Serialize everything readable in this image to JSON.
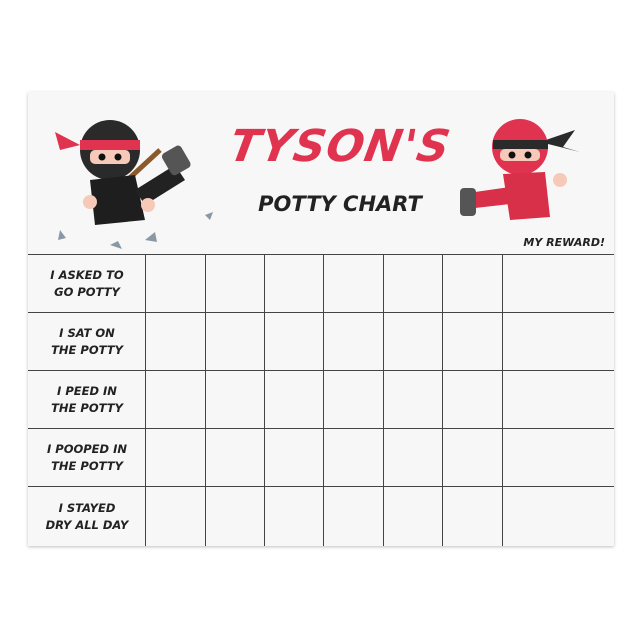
{
  "header": {
    "name_title": "TYSON'S",
    "subtitle": "POTTY CHART",
    "reward_label": "MY REWARD!"
  },
  "rows": [
    {
      "label": "I ASKED TO\nGO POTTY"
    },
    {
      "label": "I SAT ON\nTHE POTTY"
    },
    {
      "label": "I PEED IN\nTHE POTTY"
    },
    {
      "label": "I POOPED IN\nTHE POTTY"
    },
    {
      "label": "I STAYED\nDRY ALL DAY"
    }
  ],
  "columns": {
    "day_columns": 6,
    "reward_column": 1
  },
  "colors": {
    "accent_red": "#e0334f",
    "text_dark": "#222222",
    "grid_line": "#444444"
  },
  "illustrations": [
    "black-ninja-kicking",
    "red-ninja-kicking",
    "shuriken-stars"
  ]
}
